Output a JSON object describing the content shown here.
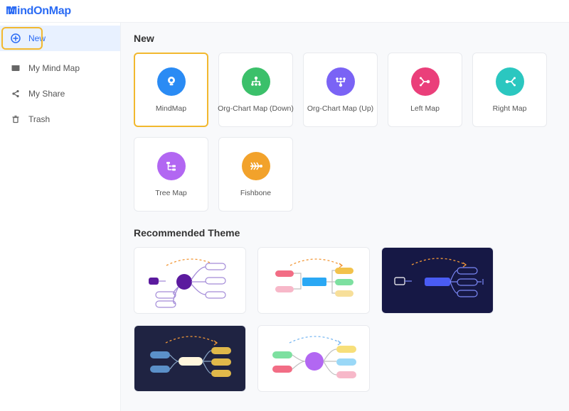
{
  "brand": {
    "name": "MindOnMap"
  },
  "sidebar": {
    "items": [
      {
        "label": "New",
        "icon": "plus-circle",
        "active": true
      },
      {
        "label": "My Mind Map",
        "icon": "folder"
      },
      {
        "label": "My Share",
        "icon": "share"
      },
      {
        "label": "Trash",
        "icon": "trash"
      }
    ]
  },
  "sections": {
    "new_title": "New",
    "recommended_title": "Recommended Theme"
  },
  "templates": [
    {
      "label": "MindMap",
      "color": "#2a8bf4",
      "icon": "bulb",
      "selected": true
    },
    {
      "label": "Org-Chart Map (Down)",
      "color": "#3bc06a",
      "icon": "org-down"
    },
    {
      "label": "Org-Chart Map (Up)",
      "color": "#7a63f5",
      "icon": "org-up"
    },
    {
      "label": "Left Map",
      "color": "#ea3f7a",
      "icon": "branch-left"
    },
    {
      "label": "Right Map",
      "color": "#2bc7c0",
      "icon": "branch-right"
    },
    {
      "label": "Tree Map",
      "color": "#b267f2",
      "icon": "tree"
    },
    {
      "label": "Fishbone",
      "color": "#f2a22b",
      "icon": "fishbone"
    }
  ],
  "themes": [
    {
      "bg": "#ffffff",
      "center_color": "#5b1a9e",
      "center_shape": "circle",
      "node_fill": "#ffffff",
      "node_stroke": "#a38bd8",
      "line_color": "#a38bd8",
      "dashed_color": "#f29838",
      "accent": "#5b1a9e"
    },
    {
      "bg": "#ffffff",
      "center_color": "#2aa8f4",
      "center_shape": "rect",
      "nodes": [
        "#f26d85",
        "#f7b8c9",
        "#7de0a0",
        "#aee8c6",
        "#f2c24b",
        "#f7df9a"
      ],
      "line_color": "#bfbfbf",
      "dashed_color": "#f29838"
    },
    {
      "bg": "#161845",
      "center_color": "#4a5cf4",
      "center_shape": "rect",
      "node_fill": "none",
      "node_stroke": "#7b88f7",
      "line_color": "#7b88f7",
      "dashed_color": "#f29838",
      "accent": "#ffffff"
    },
    {
      "bg": "#1f2342",
      "center_color": "#fff6dd",
      "center_shape": "rect",
      "nodes_left": [
        "#5b90c9",
        "#5b90c9"
      ],
      "nodes_right": [
        "#e0b84a",
        "#e0b84a",
        "#e0b84a"
      ],
      "line_color": "#8aa6c6",
      "dashed_color": "#f29838"
    },
    {
      "bg": "#ffffff",
      "center_color": "#b267f2",
      "center_shape": "circle",
      "nodes_left": [
        "#7de0a0",
        "#f26d85"
      ],
      "nodes_right": [
        "#f7df7a",
        "#9ad8f7",
        "#f7b8c9"
      ],
      "line_color": "#bfbfbf",
      "dashed_color": "#7ab8f2"
    }
  ],
  "colors": {
    "brand": "#2a6bf4",
    "highlight_ring": "#f2b82e",
    "sidebar_active_bg": "#e8f1ff",
    "page_bg": "#f8f9fb",
    "card_border": "#e8eaee"
  }
}
